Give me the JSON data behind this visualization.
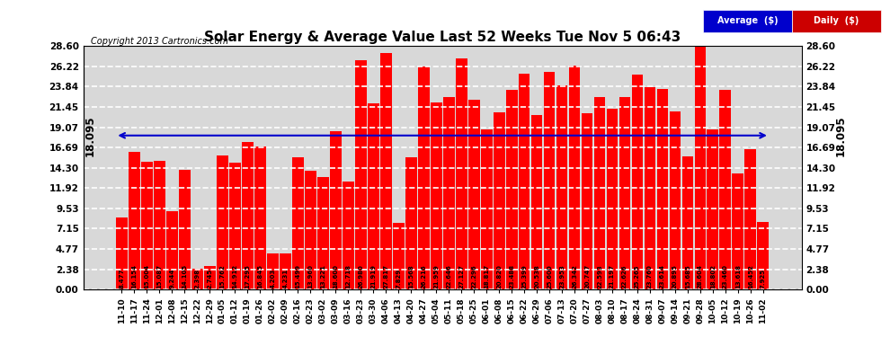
{
  "title": "Solar Energy & Average Value Last 52 Weeks Tue Nov 5 06:43",
  "copyright": "Copyright 2013 Cartronics.com",
  "average_line": 18.095,
  "bar_color": "#ff0000",
  "average_line_color": "#0000cc",
  "background_color": "#ffffff",
  "plot_bg_color": "#d8d8d8",
  "ylim": [
    0,
    28.6
  ],
  "yticks": [
    0.0,
    2.38,
    4.77,
    7.15,
    9.53,
    11.92,
    14.3,
    16.69,
    19.07,
    21.45,
    23.84,
    26.22,
    28.6
  ],
  "legend_avg_color": "#0000cc",
  "legend_daily_color": "#cc0000",
  "categories": [
    "11-10",
    "11-17",
    "11-24",
    "12-01",
    "12-08",
    "12-15",
    "12-22",
    "12-29",
    "01-05",
    "01-12",
    "01-19",
    "01-26",
    "02-02",
    "02-09",
    "02-16",
    "02-23",
    "03-02",
    "03-09",
    "03-16",
    "03-23",
    "03-30",
    "04-06",
    "04-13",
    "04-20",
    "04-27",
    "05-04",
    "05-11",
    "05-18",
    "05-25",
    "06-01",
    "06-08",
    "06-15",
    "06-22",
    "06-29",
    "07-06",
    "07-13",
    "07-20",
    "07-27",
    "08-03",
    "08-10",
    "08-17",
    "08-24",
    "08-31",
    "09-07",
    "09-14",
    "09-21",
    "09-28",
    "10-05",
    "10-12",
    "10-19",
    "10-26",
    "11-02"
  ],
  "values": [
    8.477,
    16.154,
    15.004,
    15.087,
    9.244,
    14.105,
    2.398,
    2.745,
    15.762,
    14.912,
    17.295,
    16.845,
    4.203,
    4.231,
    15.499,
    13.96,
    13.221,
    18.6,
    12.718,
    26.98,
    21.919,
    27.817,
    7.829,
    15.568,
    26.216,
    21.959,
    22.646,
    27.127,
    22.296,
    18.817,
    20.82,
    23.488,
    25.399,
    20.538,
    25.6,
    23.953,
    26.342,
    20.747,
    22.593,
    21.197,
    22.626,
    25.265,
    23.76,
    23.614,
    20.895,
    15.685,
    28.604,
    18.802,
    23.46,
    13.618,
    16.452,
    7.925
  ]
}
